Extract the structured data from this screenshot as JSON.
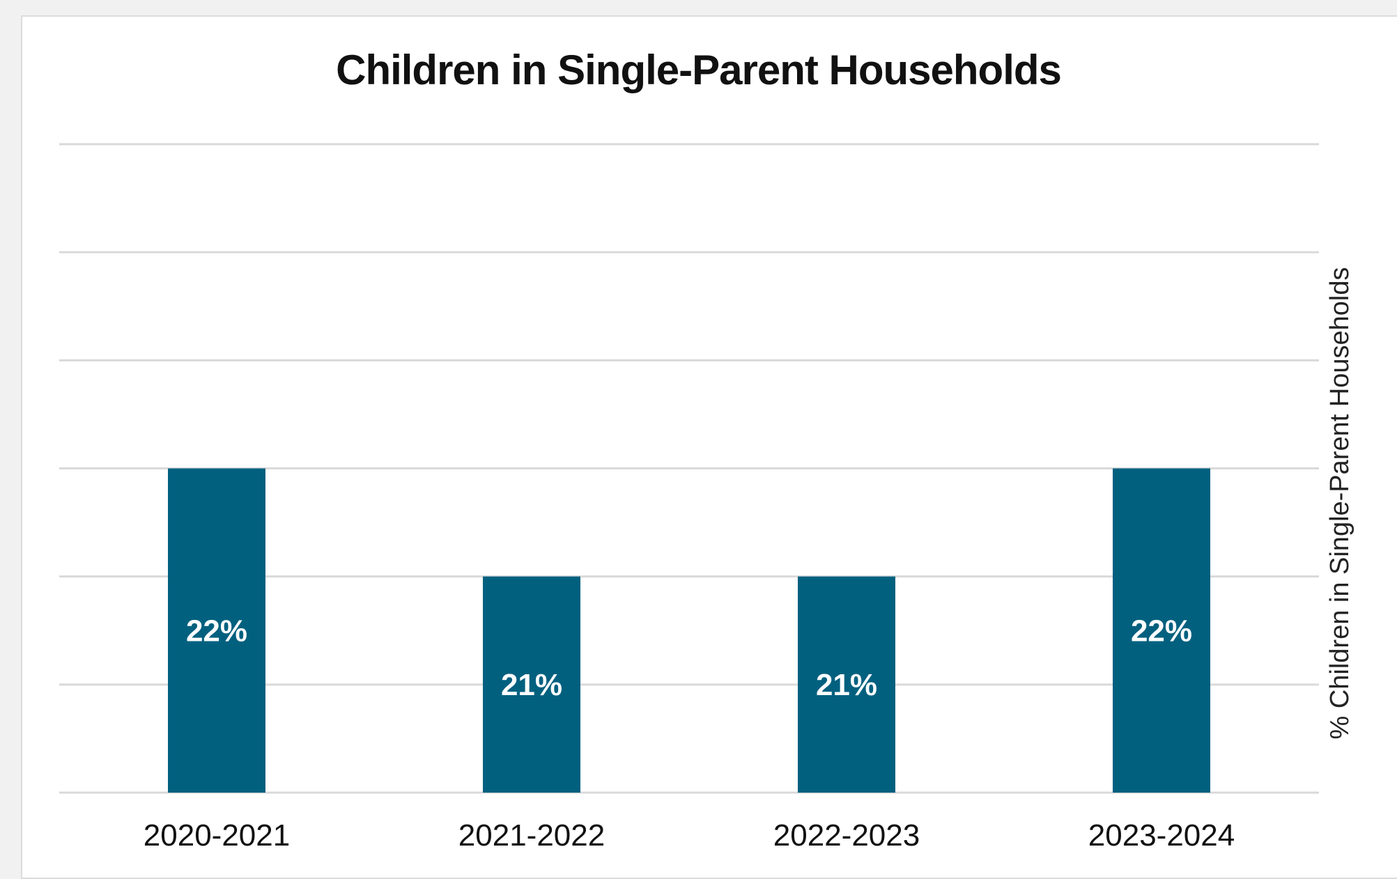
{
  "chart_data": {
    "type": "bar",
    "title": "Children in Single-Parent Households",
    "xlabel": "",
    "ylabel": "% Children in Single-Parent Households",
    "categories": [
      "2020-2021",
      "2021-2022",
      "2022-2023",
      "2023-2024"
    ],
    "values": [
      22,
      21,
      21,
      22
    ],
    "data_labels": [
      "22%",
      "21%",
      "21%",
      "22%"
    ],
    "ylim": [
      19,
      25
    ],
    "grid": true,
    "legend": "none",
    "bar_color": "#02607f",
    "grid_color": "#d9d9d9"
  }
}
